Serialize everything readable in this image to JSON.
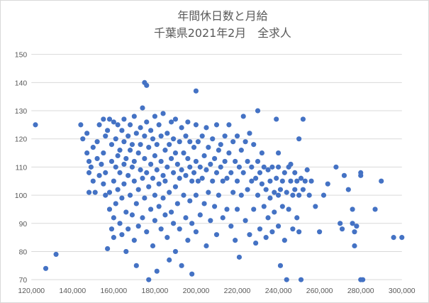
{
  "chart_data": {
    "type": "scatter",
    "title": "年間休日数と月給",
    "subtitle": "千葉県2021年2月　全求人",
    "xlim": [
      120000,
      300000
    ],
    "ylim": [
      70,
      150
    ],
    "x_ticks": [
      "120,000",
      "140,000",
      "160,000",
      "180,000",
      "200,000",
      "220,000",
      "240,000",
      "260,000",
      "280,000",
      "300,000"
    ],
    "y_ticks": [
      "70",
      "80",
      "90",
      "100",
      "110",
      "120",
      "130",
      "140",
      "150"
    ],
    "grid": "horizontal",
    "color": "#4472c4",
    "series": [
      {
        "points": [
          [
            122000,
            125
          ],
          [
            127000,
            74
          ],
          [
            132000,
            79
          ],
          [
            144000,
            125
          ],
          [
            145000,
            120
          ],
          [
            147000,
            122
          ],
          [
            147000,
            115
          ],
          [
            148000,
            112
          ],
          [
            148000,
            101
          ],
          [
            148000,
            108
          ],
          [
            149000,
            110
          ],
          [
            150000,
            117
          ],
          [
            150000,
            105
          ],
          [
            151000,
            101
          ],
          [
            152000,
            113
          ],
          [
            152000,
            119
          ],
          [
            153000,
            125
          ],
          [
            153000,
            107
          ],
          [
            154000,
            111
          ],
          [
            155000,
            115
          ],
          [
            155000,
            104
          ],
          [
            155000,
            127
          ],
          [
            156000,
            121
          ],
          [
            156000,
            100
          ],
          [
            156000,
            108
          ],
          [
            157000,
            123
          ],
          [
            157000,
            81
          ],
          [
            158000,
            127
          ],
          [
            158000,
            95
          ],
          [
            158000,
            101
          ],
          [
            159000,
            112
          ],
          [
            159000,
            118
          ],
          [
            159000,
            88
          ],
          [
            160000,
            85
          ],
          [
            160000,
            126
          ],
          [
            160000,
            105
          ],
          [
            160000,
            92
          ],
          [
            161000,
            110
          ],
          [
            161000,
            97
          ],
          [
            161000,
            120
          ],
          [
            162000,
            114
          ],
          [
            162000,
            102
          ],
          [
            162000,
            125
          ],
          [
            163000,
            108
          ],
          [
            163000,
            90
          ],
          [
            163000,
            116
          ],
          [
            164000,
            123
          ],
          [
            164000,
            99
          ],
          [
            164000,
            86
          ],
          [
            165000,
            111
          ],
          [
            165000,
            119
          ],
          [
            165000,
            104
          ],
          [
            165000,
            127
          ],
          [
            166000,
            94
          ],
          [
            166000,
            113
          ],
          [
            166000,
            80
          ],
          [
            167000,
            121
          ],
          [
            167000,
            107
          ],
          [
            167000,
            88
          ],
          [
            168000,
            116
          ],
          [
            168000,
            100
          ],
          [
            168000,
            125
          ],
          [
            169000,
            110
          ],
          [
            169000,
            93
          ],
          [
            169000,
            118
          ],
          [
            170000,
            105
          ],
          [
            170000,
            128
          ],
          [
            170000,
            84
          ],
          [
            170000,
            112
          ],
          [
            171000,
            97
          ],
          [
            171000,
            122
          ],
          [
            171000,
            75
          ],
          [
            172000,
            115
          ],
          [
            172000,
            102
          ],
          [
            172000,
            89
          ],
          [
            173000,
            109
          ],
          [
            173000,
            124
          ],
          [
            173000,
            118
          ],
          [
            174000,
            106
          ],
          [
            174000,
            92
          ],
          [
            174000,
            131
          ],
          [
            175000,
            113
          ],
          [
            175000,
            99
          ],
          [
            175000,
            121
          ],
          [
            175000,
            140
          ],
          [
            176000,
            139
          ],
          [
            176000,
            108
          ],
          [
            176000,
            87
          ],
          [
            176000,
            126
          ],
          [
            177000,
            117
          ],
          [
            177000,
            103
          ],
          [
            177000,
            70
          ],
          [
            178000,
            111
          ],
          [
            178000,
            95
          ],
          [
            178000,
            123
          ],
          [
            179000,
            106
          ],
          [
            179000,
            120
          ],
          [
            179000,
            82
          ],
          [
            180000,
            114
          ],
          [
            180000,
            100
          ],
          [
            180000,
            128
          ],
          [
            180000,
            91
          ],
          [
            181000,
            109
          ],
          [
            181000,
            118
          ],
          [
            181000,
            73
          ],
          [
            182000,
            104
          ],
          [
            182000,
            125
          ],
          [
            182000,
            96
          ],
          [
            183000,
            112
          ],
          [
            183000,
            88
          ],
          [
            183000,
            121
          ],
          [
            184000,
            107
          ],
          [
            184000,
            129
          ],
          [
            184000,
            99
          ],
          [
            185000,
            116
          ],
          [
            185000,
            93
          ],
          [
            185000,
            105
          ],
          [
            186000,
            122
          ],
          [
            186000,
            110
          ],
          [
            186000,
            85
          ],
          [
            187000,
            118
          ],
          [
            187000,
            101
          ],
          [
            187000,
            77
          ],
          [
            188000,
            113
          ],
          [
            188000,
            126
          ],
          [
            188000,
            94
          ],
          [
            189000,
            108
          ],
          [
            189000,
            120
          ],
          [
            189000,
            90
          ],
          [
            190000,
            115
          ],
          [
            190000,
            103
          ],
          [
            190000,
            127
          ],
          [
            190000,
            80
          ],
          [
            191000,
            111
          ],
          [
            191000,
            97
          ],
          [
            192000,
            119
          ],
          [
            192000,
            106
          ],
          [
            192000,
            88
          ],
          [
            193000,
            124
          ],
          [
            193000,
            109
          ],
          [
            193000,
            75
          ],
          [
            194000,
            115
          ],
          [
            194000,
            100
          ],
          [
            195000,
            121
          ],
          [
            195000,
            107
          ],
          [
            195000,
            92
          ],
          [
            196000,
            113
          ],
          [
            196000,
            126
          ],
          [
            196000,
            84
          ],
          [
            197000,
            110
          ],
          [
            197000,
            98
          ],
          [
            197000,
            119
          ],
          [
            198000,
            105
          ],
          [
            198000,
            90
          ],
          [
            198000,
            72
          ],
          [
            199000,
            117
          ],
          [
            199000,
            108
          ],
          [
            200000,
            125
          ],
          [
            200000,
            112
          ],
          [
            200000,
            100
          ],
          [
            200000,
            137
          ],
          [
            200000,
            87
          ],
          [
            201000,
            119
          ],
          [
            201000,
            105
          ],
          [
            202000,
            110
          ],
          [
            202000,
            93
          ],
          [
            203000,
            121
          ],
          [
            203000,
            106
          ],
          [
            204000,
            114
          ],
          [
            204000,
            97
          ],
          [
            205000,
            124
          ],
          [
            205000,
            109
          ],
          [
            205000,
            82
          ],
          [
            206000,
            117
          ],
          [
            206000,
            101
          ],
          [
            207000,
            111
          ],
          [
            207000,
            91
          ],
          [
            208000,
            120
          ],
          [
            208000,
            105
          ],
          [
            209000,
            113
          ],
          [
            209000,
            96
          ],
          [
            210000,
            125
          ],
          [
            210000,
            108
          ],
          [
            210000,
            86
          ],
          [
            211000,
            116
          ],
          [
            211000,
            100
          ],
          [
            212000,
            110
          ],
          [
            212000,
            118
          ],
          [
            213000,
            105
          ],
          [
            213000,
            92
          ],
          [
            214000,
            121
          ],
          [
            214000,
            112
          ],
          [
            215000,
            106
          ],
          [
            215000,
            95
          ],
          [
            216000,
            115
          ],
          [
            216000,
            125
          ],
          [
            217000,
            108
          ],
          [
            217000,
            89
          ],
          [
            218000,
            119
          ],
          [
            218000,
            101
          ],
          [
            219000,
            112
          ],
          [
            219000,
            84
          ],
          [
            220000,
            105
          ],
          [
            220000,
            121
          ],
          [
            220000,
            95
          ],
          [
            221000,
            110
          ],
          [
            221000,
            78
          ],
          [
            222000,
            116
          ],
          [
            222000,
            100
          ],
          [
            223000,
            108
          ],
          [
            223000,
            128
          ],
          [
            224000,
            119
          ],
          [
            224000,
            91
          ],
          [
            225000,
            112
          ],
          [
            225000,
            102
          ],
          [
            226000,
            122
          ],
          [
            226000,
            86
          ],
          [
            227000,
            110
          ],
          [
            227000,
            105
          ],
          [
            228000,
            118
          ],
          [
            228000,
            95
          ],
          [
            229000,
            106
          ],
          [
            229000,
            83
          ],
          [
            230000,
            130
          ],
          [
            230000,
            112
          ],
          [
            230000,
            100
          ],
          [
            231000,
            108
          ],
          [
            231000,
            88
          ],
          [
            232000,
            115
          ],
          [
            232000,
            104
          ],
          [
            233000,
            96
          ],
          [
            233000,
            110
          ],
          [
            234000,
            102
          ],
          [
            234000,
            85
          ],
          [
            235000,
            109
          ],
          [
            235000,
            92
          ],
          [
            236000,
            105
          ],
          [
            236000,
            99
          ],
          [
            237000,
            110
          ],
          [
            237000,
            87
          ],
          [
            238000,
            101
          ],
          [
            238000,
            94
          ],
          [
            239000,
            106
          ],
          [
            239000,
            127
          ],
          [
            240000,
            110
          ],
          [
            240000,
            115
          ],
          [
            240000,
            89
          ],
          [
            240000,
            100
          ],
          [
            241000,
            102
          ],
          [
            241000,
            75
          ],
          [
            242000,
            105
          ],
          [
            242000,
            96
          ],
          [
            243000,
            108
          ],
          [
            243000,
            84
          ],
          [
            244000,
            101
          ],
          [
            244000,
            70
          ],
          [
            245000,
            110
          ],
          [
            245000,
            95
          ],
          [
            246000,
            105
          ],
          [
            246000,
            111
          ],
          [
            247000,
            100
          ],
          [
            247000,
            88
          ],
          [
            248000,
            108
          ],
          [
            248000,
            102
          ],
          [
            249000,
            92
          ],
          [
            249000,
            105
          ],
          [
            250000,
            120
          ],
          [
            250000,
            100
          ],
          [
            250000,
            87
          ],
          [
            251000,
            106
          ],
          [
            251000,
            70
          ],
          [
            252000,
            127
          ],
          [
            252000,
            102
          ],
          [
            253000,
            105
          ],
          [
            254000,
            109
          ],
          [
            255000,
            100
          ],
          [
            256000,
            105
          ],
          [
            258000,
            96
          ],
          [
            260000,
            87
          ],
          [
            262000,
            100
          ],
          [
            264000,
            104
          ],
          [
            268000,
            110
          ],
          [
            270000,
            90
          ],
          [
            271000,
            88
          ],
          [
            272000,
            107
          ],
          [
            274000,
            102
          ],
          [
            276000,
            90
          ],
          [
            276000,
            95
          ],
          [
            277000,
            87
          ],
          [
            277000,
            82
          ],
          [
            278000,
            89
          ],
          [
            280000,
            107
          ],
          [
            280000,
            108
          ],
          [
            280000,
            70
          ],
          [
            281000,
            70
          ],
          [
            287000,
            95
          ],
          [
            290000,
            105
          ],
          [
            296000,
            85
          ],
          [
            300000,
            85
          ]
        ]
      }
    ]
  }
}
